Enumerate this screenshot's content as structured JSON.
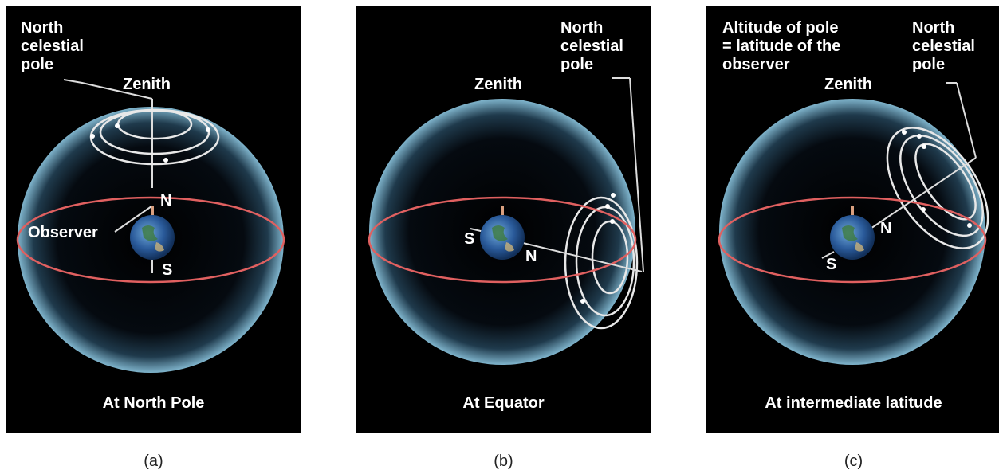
{
  "colors": {
    "background": "#000000",
    "sphere_edge": "#5a8fa8",
    "horizon": "#e06060",
    "arcs": "#e8e8e8"
  },
  "panels": [
    {
      "id": "a",
      "title": "At North Pole",
      "caption": "(a)",
      "labels": {
        "ncp": "North\ncelestial\npole",
        "zenith": "Zenith",
        "n": "N",
        "s": "S",
        "observer": "Observer"
      }
    },
    {
      "id": "b",
      "title": "At Equator",
      "caption": "(b)",
      "labels": {
        "ncp": "North\ncelestial\npole",
        "zenith": "Zenith",
        "n": "N",
        "s": "S"
      }
    },
    {
      "id": "c",
      "title": "At intermediate latitude",
      "caption": "(c)",
      "labels": {
        "altitude": "Altitude of pole\n= latitude of the\nobserver",
        "ncp": "North\ncelestial\npole",
        "zenith": "Zenith",
        "n": "N",
        "s": "S"
      }
    }
  ]
}
